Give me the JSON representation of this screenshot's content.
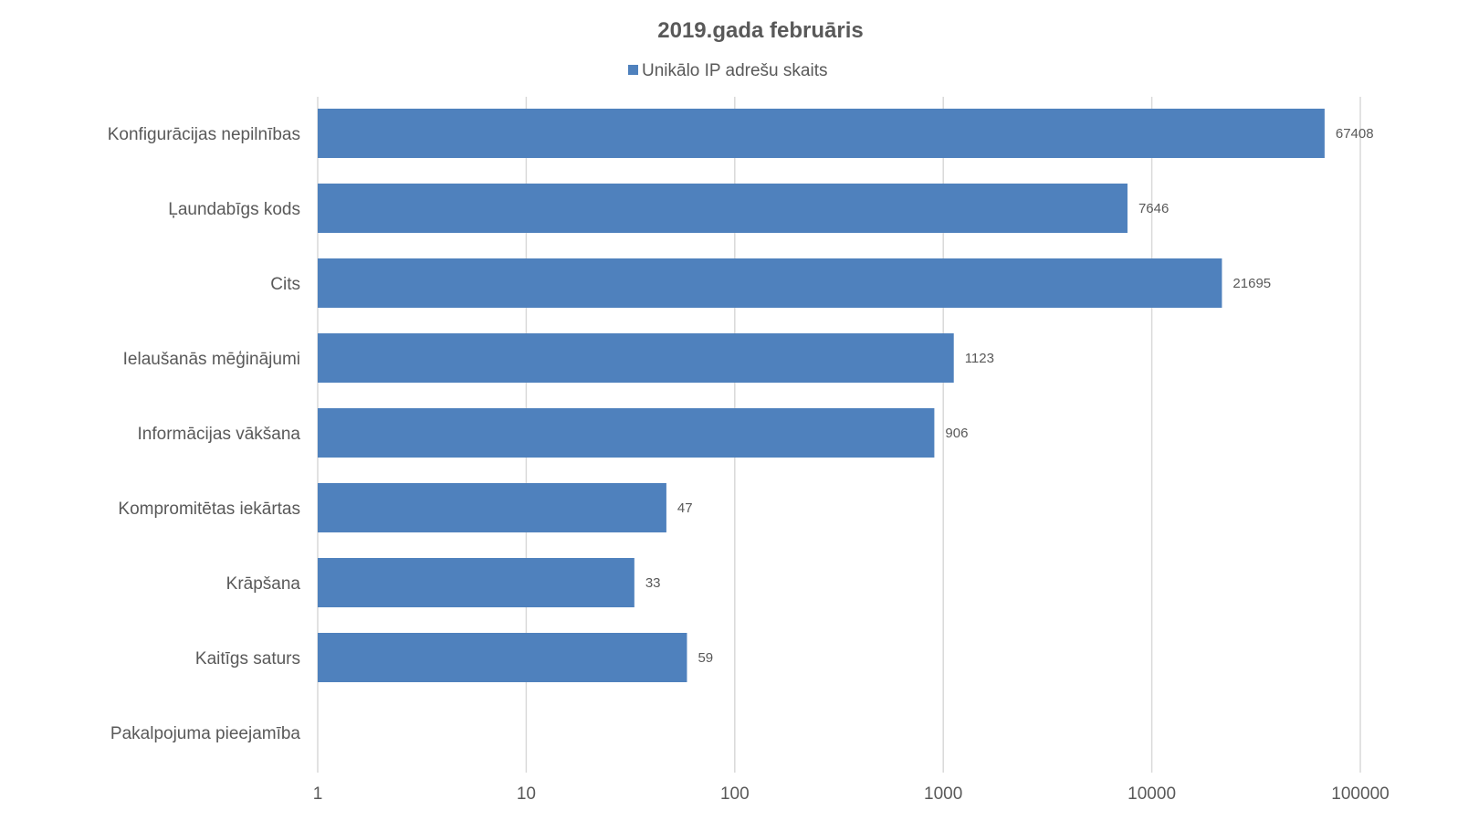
{
  "chart_data": {
    "type": "bar",
    "orientation": "horizontal",
    "title": "2019.gada februāris",
    "xscale": "log",
    "xlim": [
      1,
      100000
    ],
    "xticks": [
      "1",
      "10",
      "100",
      "1000",
      "10000",
      "100000"
    ],
    "grid": true,
    "legend_position": "top",
    "categories": [
      "Konfigurācijas nepilnības",
      "Ļaundabīgs kods",
      "Cits",
      "Ielaušanās mēģinājumi",
      "Informācijas vākšana",
      "Kompromitētas iekārtas",
      "Krāpšana",
      "Kaitīgs saturs",
      "Pakalpojuma pieejamība"
    ],
    "series": [
      {
        "name": "Unikālo IP adrešu skaits",
        "color": "#4f81bd",
        "values": [
          67408,
          7646,
          21695,
          1123,
          906,
          47,
          33,
          59,
          null
        ],
        "labels": [
          "67408",
          "7646",
          "21695",
          "1123",
          "906",
          "47",
          "33",
          "59",
          ""
        ]
      }
    ]
  }
}
